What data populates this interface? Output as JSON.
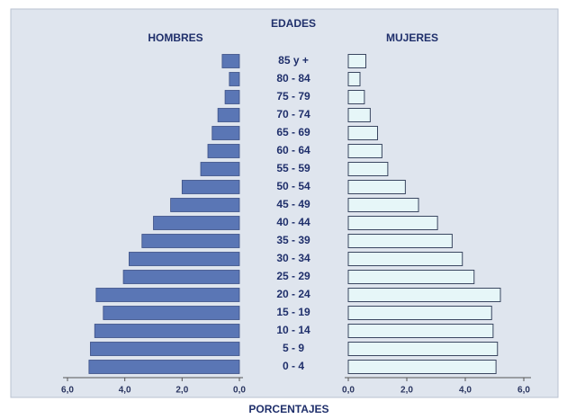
{
  "chart_data": {
    "type": "pyramid",
    "ylabel": "EDADES",
    "xlabel": "PORCENTAJES",
    "categories": [
      "85 y +",
      "80 - 84",
      "75 - 79",
      "70 - 74",
      "65 - 69",
      "60 - 64",
      "55 - 59",
      "50 - 54",
      "45 - 49",
      "40 - 44",
      "35 - 39",
      "30 - 34",
      "25 - 29",
      "20 - 24",
      "15 - 19",
      "10 - 14",
      "5 - 9",
      "0 - 4"
    ],
    "series": [
      {
        "name": "HOMBRES",
        "color": "#5a76b5",
        "values": [
          0.6,
          0.35,
          0.5,
          0.75,
          0.95,
          1.1,
          1.35,
          2.0,
          2.4,
          3.0,
          3.4,
          3.85,
          4.05,
          5.0,
          4.75,
          5.05,
          5.2,
          5.25
        ]
      },
      {
        "name": "MUJERES",
        "color": "#e6f6f8",
        "values": [
          0.6,
          0.4,
          0.55,
          0.75,
          1.0,
          1.15,
          1.35,
          1.95,
          2.4,
          3.05,
          3.55,
          3.9,
          4.3,
          5.2,
          4.9,
          4.95,
          5.1,
          5.05
        ]
      }
    ],
    "xlim": [
      0,
      6
    ],
    "xticks": [
      {
        "value": 0,
        "label": "0,0"
      },
      {
        "value": 2,
        "label": "2,0"
      },
      {
        "value": 4,
        "label": "4,0"
      },
      {
        "value": 6,
        "label": "6,0"
      }
    ]
  }
}
